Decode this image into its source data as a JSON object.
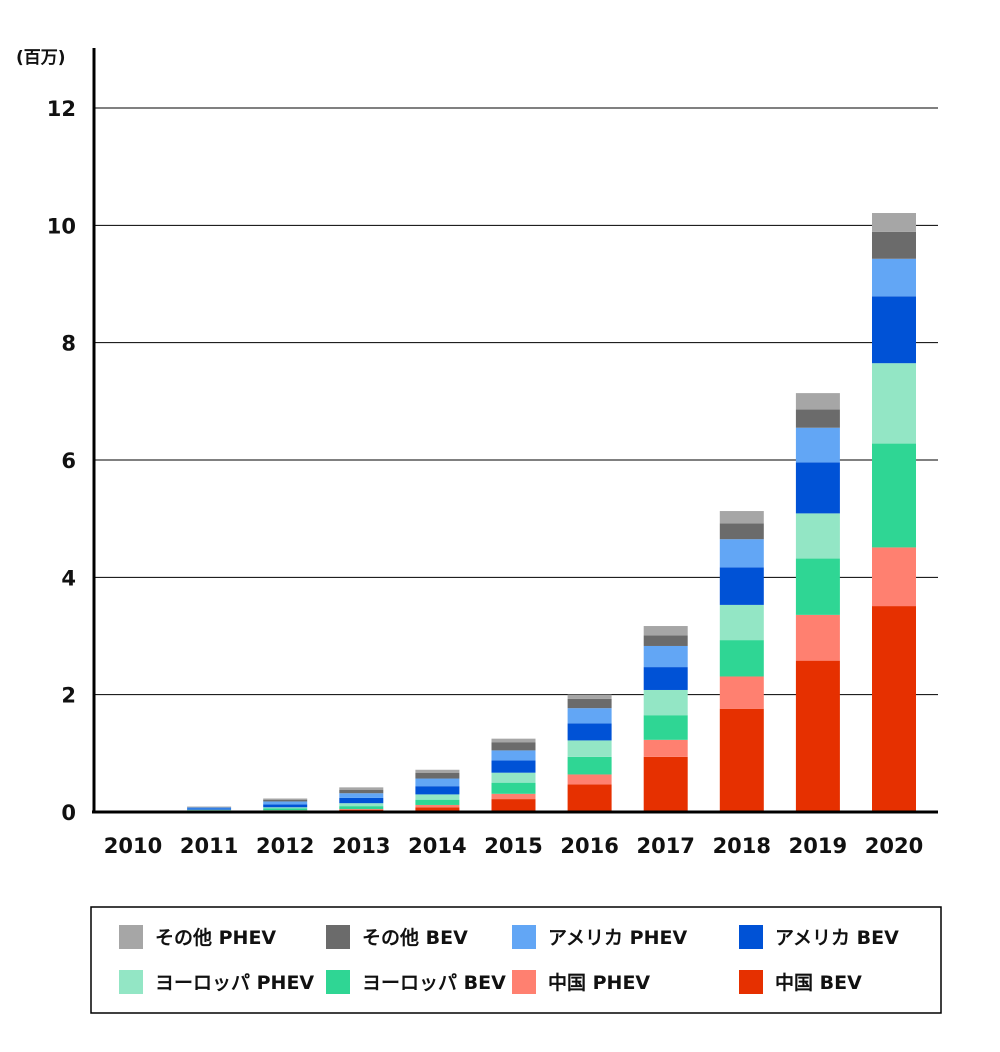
{
  "chart_data": {
    "type": "bar",
    "stacked": true,
    "title": "",
    "xlabel": "",
    "ylabel": "(百万)",
    "ylim": [
      0,
      12
    ],
    "yticks": [
      "0",
      "2",
      "4",
      "6",
      "8",
      "10",
      "12"
    ],
    "grid": "horizontal",
    "legend_position": "bottom",
    "categories": [
      "2010",
      "2011",
      "2012",
      "2013",
      "2014",
      "2015",
      "2016",
      "2017",
      "2018",
      "2019",
      "2020"
    ],
    "series": [
      {
        "name": "中国 BEV",
        "color": "#e63000",
        "values": [
          0,
          0.01,
          0.02,
          0.04,
          0.08,
          0.22,
          0.47,
          0.94,
          1.76,
          2.58,
          3.51
        ]
      },
      {
        "name": "中国 PHEV",
        "color": "#ff8070",
        "values": [
          0,
          0.0,
          0.01,
          0.01,
          0.04,
          0.09,
          0.17,
          0.29,
          0.55,
          0.78,
          1.0
        ]
      },
      {
        "name": "ヨーロッパ BEV",
        "color": "#2fd694",
        "values": [
          0,
          0.02,
          0.03,
          0.05,
          0.09,
          0.19,
          0.3,
          0.42,
          0.62,
          0.96,
          1.77
        ]
      },
      {
        "name": "ヨーロッパ PHEV",
        "color": "#93e6c5",
        "values": [
          0,
          0.01,
          0.02,
          0.05,
          0.09,
          0.17,
          0.28,
          0.43,
          0.6,
          0.77,
          1.37
        ]
      },
      {
        "name": "アメリカ BEV",
        "color": "#0052d6",
        "values": [
          0,
          0.02,
          0.05,
          0.09,
          0.14,
          0.21,
          0.29,
          0.39,
          0.64,
          0.87,
          1.14
        ]
      },
      {
        "name": "アメリカ PHEV",
        "color": "#62a6f5",
        "values": [
          0,
          0.02,
          0.05,
          0.08,
          0.13,
          0.17,
          0.26,
          0.36,
          0.48,
          0.59,
          0.64
        ]
      },
      {
        "name": "その他 BEV",
        "color": "#6b6b6b",
        "values": [
          0,
          0.01,
          0.03,
          0.06,
          0.1,
          0.14,
          0.16,
          0.18,
          0.27,
          0.31,
          0.46
        ]
      },
      {
        "name": "その他 PHEV",
        "color": "#a6a6a6",
        "values": [
          0,
          0.0,
          0.02,
          0.04,
          0.05,
          0.06,
          0.07,
          0.16,
          0.21,
          0.28,
          0.32
        ]
      }
    ],
    "legend_order": [
      [
        "その他 PHEV",
        "その他 BEV",
        "アメリカ PHEV",
        "アメリカ BEV"
      ],
      [
        "ヨーロッパ PHEV",
        "ヨーロッパ BEV",
        "中国 PHEV",
        "中国 BEV"
      ]
    ]
  }
}
